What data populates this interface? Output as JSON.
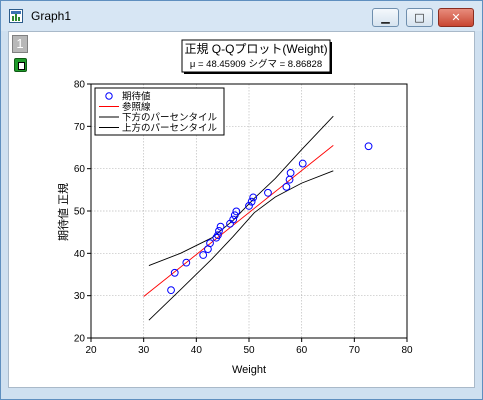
{
  "window": {
    "title": "Graph1",
    "icon": "graph-window-icon"
  },
  "controls": {
    "minimize_icon": "minimize-icon",
    "maximize_icon": "maximize-icon",
    "close_icon": "close-icon"
  },
  "layer_tab": "1",
  "lock_icon": "lock-icon",
  "chart_data": {
    "type": "scatter",
    "title": "正規 Q-Qプロット(Weight)",
    "subtitle": "μ = 48.45909  シグマ = 8.86828",
    "xlabel": "Weight",
    "ylabel": "期待値 正規",
    "xlim": [
      20,
      80
    ],
    "ylim": [
      20,
      80
    ],
    "xticks": [
      "20",
      "30",
      "40",
      "50",
      "60",
      "70",
      "80"
    ],
    "yticks": [
      "20",
      "30",
      "40",
      "50",
      "60",
      "70",
      "80"
    ],
    "grid": true,
    "legend_position": "top-left",
    "legend": [
      {
        "label": "期待値",
        "kind": "marker",
        "color": "#0000ff"
      },
      {
        "label": "参照線",
        "kind": "line",
        "color": "#ff0000"
      },
      {
        "label": "下方のパーセンタイル",
        "kind": "line",
        "color": "#000000"
      },
      {
        "label": "上方のパーセンタイル",
        "kind": "line",
        "color": "#000000"
      }
    ],
    "series": [
      {
        "name": "期待値",
        "type": "scatter",
        "color": "#0000ff",
        "points": [
          [
            35.2,
            31.3
          ],
          [
            35.9,
            35.4
          ],
          [
            38.1,
            37.8
          ],
          [
            41.3,
            39.6
          ],
          [
            42.2,
            41.0
          ],
          [
            42.6,
            42.4
          ],
          [
            43.8,
            43.7
          ],
          [
            44.1,
            44.3
          ],
          [
            44.3,
            45.3
          ],
          [
            44.6,
            46.3
          ],
          [
            46.4,
            47.0
          ],
          [
            47.0,
            48.0
          ],
          [
            47.3,
            49.0
          ],
          [
            47.6,
            49.9
          ],
          [
            50.0,
            51.2
          ],
          [
            50.5,
            52.2
          ],
          [
            50.8,
            53.2
          ],
          [
            53.6,
            54.3
          ],
          [
            57.1,
            55.7
          ],
          [
            57.7,
            57.4
          ],
          [
            57.9,
            59.0
          ],
          [
            60.2,
            61.2
          ],
          [
            72.7,
            65.3
          ]
        ]
      },
      {
        "name": "参照線",
        "type": "line",
        "color": "#ff0000",
        "points": [
          [
            30,
            29.8
          ],
          [
            66,
            65.5
          ]
        ]
      },
      {
        "name": "下方のパーセンタイル",
        "type": "line",
        "color": "#000000",
        "points": [
          [
            31,
            24.2
          ],
          [
            37,
            31.4
          ],
          [
            43,
            38.7
          ],
          [
            47,
            44.0
          ],
          [
            51,
            49.6
          ],
          [
            55,
            53.3
          ],
          [
            60,
            56.6
          ],
          [
            66,
            59.5
          ]
        ]
      },
      {
        "name": "上方のパーセンタイル",
        "type": "line",
        "color": "#000000",
        "points": [
          [
            31,
            37.1
          ],
          [
            37,
            40.0
          ],
          [
            43,
            43.7
          ],
          [
            47,
            47.8
          ],
          [
            51,
            53.0
          ],
          [
            55,
            57.7
          ],
          [
            60,
            64.5
          ],
          [
            66,
            72.4
          ]
        ]
      }
    ]
  }
}
